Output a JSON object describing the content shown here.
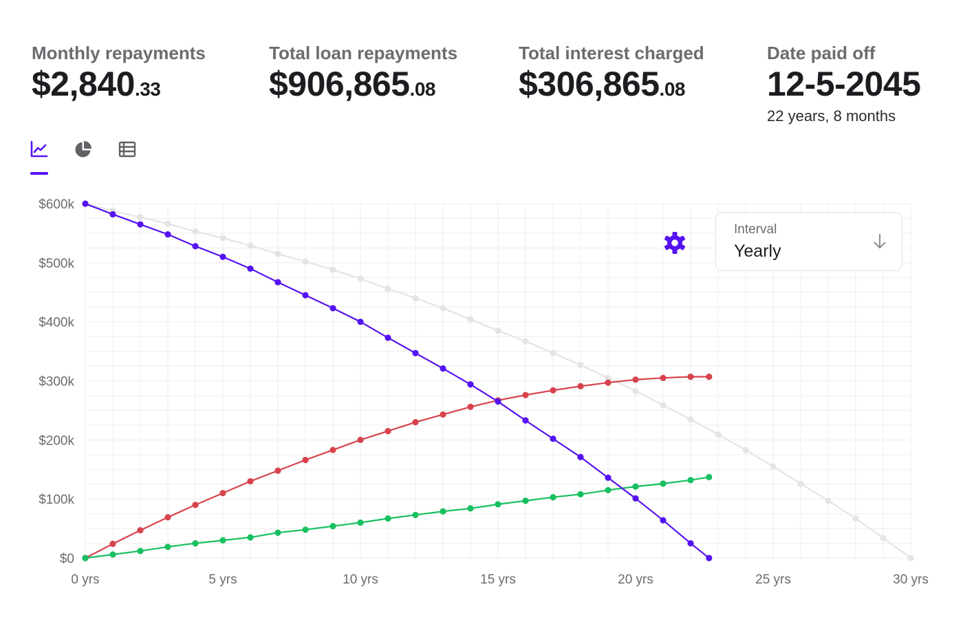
{
  "stats": [
    {
      "label": "Monthly repayments",
      "whole": "$2,840",
      "cents": ".33"
    },
    {
      "label": "Total loan repayments",
      "whole": "$906,865",
      "cents": ".08"
    },
    {
      "label": "Total interest charged",
      "whole": "$306,865",
      "cents": ".08"
    },
    {
      "label": "Date paid off",
      "whole": "12-5-2045",
      "cents": "",
      "sub": "22 years, 8 months"
    }
  ],
  "tabs": [
    {
      "name": "line-chart-icon",
      "active": true
    },
    {
      "name": "pie-chart-icon",
      "active": false
    },
    {
      "name": "table-icon",
      "active": false
    }
  ],
  "interval": {
    "label": "Interval",
    "value": "Yearly"
  },
  "colors": {
    "accent": "#5512f2",
    "red": "#d7434d",
    "green": "#16c060",
    "gray": "#e4e4e4",
    "grid": "#ededed"
  },
  "chart_data": {
    "type": "line",
    "xlim": [
      0,
      30
    ],
    "ylim": [
      0,
      600000
    ],
    "x_ticks": [
      0,
      5,
      10,
      15,
      20,
      25,
      30
    ],
    "x_tick_labels": [
      "0 yrs",
      "5 yrs",
      "10 yrs",
      "15 yrs",
      "20 yrs",
      "25 yrs",
      "30 yrs"
    ],
    "y_ticks": [
      0,
      100000,
      200000,
      300000,
      400000,
      500000,
      600000
    ],
    "y_tick_labels": [
      "$0",
      "$100k",
      "$200k",
      "$300k",
      "$400k",
      "$500k",
      "$600k"
    ],
    "grid": true,
    "series": [
      {
        "color": "#e4e4e4",
        "x": [
          0,
          1,
          2,
          3,
          4,
          5,
          6,
          7,
          8,
          9,
          10,
          11,
          12,
          13,
          14,
          15,
          16,
          17,
          18,
          19,
          20,
          21,
          22,
          23,
          24,
          25,
          26,
          27,
          28,
          29,
          30
        ],
        "y": [
          600000,
          588000,
          577000,
          566000,
          553000,
          542000,
          529000,
          515000,
          502000,
          488000,
          473000,
          456000,
          440000,
          423000,
          404000,
          385000,
          367000,
          347000,
          327000,
          305000,
          283000,
          259000,
          235000,
          209000,
          183000,
          155000,
          126000,
          97000,
          67000,
          34000,
          0
        ]
      },
      {
        "color": "#d7434d",
        "x": [
          0,
          1,
          2,
          3,
          4,
          5,
          6,
          7,
          8,
          9,
          10,
          11,
          12,
          13,
          14,
          15,
          16,
          17,
          18,
          19,
          20,
          21,
          22,
          22.67
        ],
        "y": [
          0,
          24000,
          47000,
          69000,
          90000,
          110000,
          130000,
          148000,
          166000,
          183000,
          200000,
          215000,
          230000,
          243000,
          256000,
          267000,
          276000,
          284000,
          291000,
          297000,
          302000,
          305000,
          307000,
          307000
        ]
      },
      {
        "color": "#16c060",
        "x": [
          0,
          1,
          2,
          3,
          4,
          5,
          6,
          7,
          8,
          9,
          10,
          11,
          12,
          13,
          14,
          15,
          16,
          17,
          18,
          19,
          20,
          21,
          22,
          22.67
        ],
        "y": [
          0,
          6000,
          12000,
          19000,
          25000,
          30000,
          35000,
          43000,
          48000,
          54000,
          60000,
          67000,
          73000,
          79000,
          84000,
          91000,
          97000,
          103000,
          108000,
          115000,
          121000,
          126000,
          132000,
          137000
        ]
      },
      {
        "color": "#5512f2",
        "x": [
          0,
          1,
          2,
          3,
          4,
          5,
          6,
          7,
          8,
          9,
          10,
          11,
          12,
          13,
          14,
          15,
          16,
          17,
          18,
          19,
          20,
          21,
          22,
          22.67
        ],
        "y": [
          600000,
          582000,
          565000,
          548000,
          528000,
          510000,
          490000,
          467000,
          445000,
          423000,
          400000,
          373000,
          347000,
          321000,
          294000,
          265000,
          233000,
          202000,
          171000,
          136000,
          101000,
          64000,
          25000,
          0
        ]
      }
    ]
  }
}
